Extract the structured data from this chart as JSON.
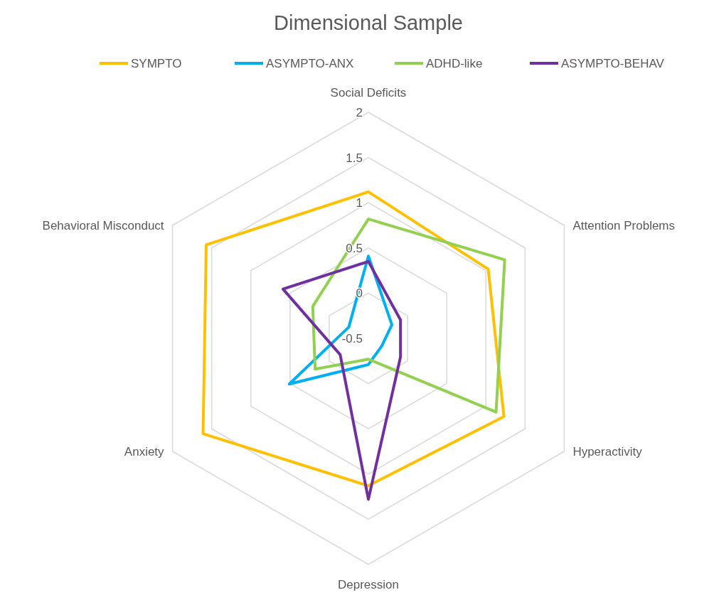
{
  "chart_data": {
    "type": "radar",
    "title": "Dimensional Sample",
    "categories": [
      "Social Deficits",
      "Attention Problems",
      "Hyperactivity",
      "Depression",
      "Anxiety",
      "Behavioral Misconduct"
    ],
    "series": [
      {
        "name": "SYMPTO",
        "color": "#ffc000",
        "values": [
          1.12,
          1.03,
          1.23,
          1.13,
          1.61,
          1.57
        ]
      },
      {
        "name": "ASYMPTO-ANX",
        "color": "#00b0f0",
        "values": [
          0.41,
          -0.2,
          -0.33,
          -0.21,
          0.51,
          -0.25
        ]
      },
      {
        "name": "ADHD-like",
        "color": "#92d050",
        "values": [
          0.82,
          1.24,
          1.13,
          -0.27,
          0.18,
          0.21
        ]
      },
      {
        "name": "ASYMPTO-BEHAV",
        "color": "#7030a0",
        "values": [
          0.35,
          -0.09,
          -0.09,
          1.28,
          -0.14,
          0.59
        ]
      }
    ],
    "ylim": [
      -0.5,
      2
    ],
    "yticks": [
      -0.5,
      0,
      0.5,
      1,
      1.5,
      2
    ],
    "grid": true,
    "legend": "top",
    "marker": "none"
  }
}
